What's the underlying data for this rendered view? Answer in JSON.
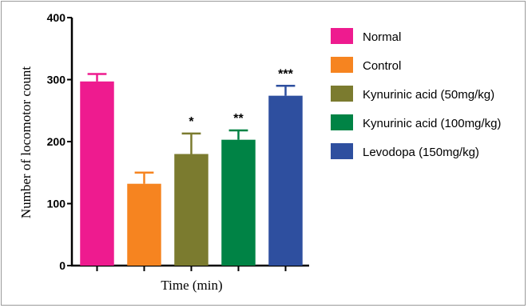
{
  "chart_data": {
    "type": "bar",
    "title": "",
    "xlabel": "Time (min)",
    "ylabel": "Number of locomotor count",
    "ylim": [
      0,
      400
    ],
    "yticks": [
      0,
      100,
      200,
      300,
      400
    ],
    "grid": false,
    "legend_position": "right",
    "categories": [
      "Normal",
      "Control",
      "Kynurinic acid (50mg/kg)",
      "Kynurinic acid (100mg/kg)",
      "Levodopa (150mg/kg)"
    ],
    "values": [
      297,
      132,
      180,
      203,
      274
    ],
    "errors": [
      12,
      18,
      33,
      15,
      16
    ],
    "annotations": [
      "",
      "",
      "*",
      "**",
      "***"
    ],
    "colors": [
      "#ee1b8f",
      "#f68420",
      "#7b7b2f",
      "#008345",
      "#2e4f9f"
    ]
  }
}
